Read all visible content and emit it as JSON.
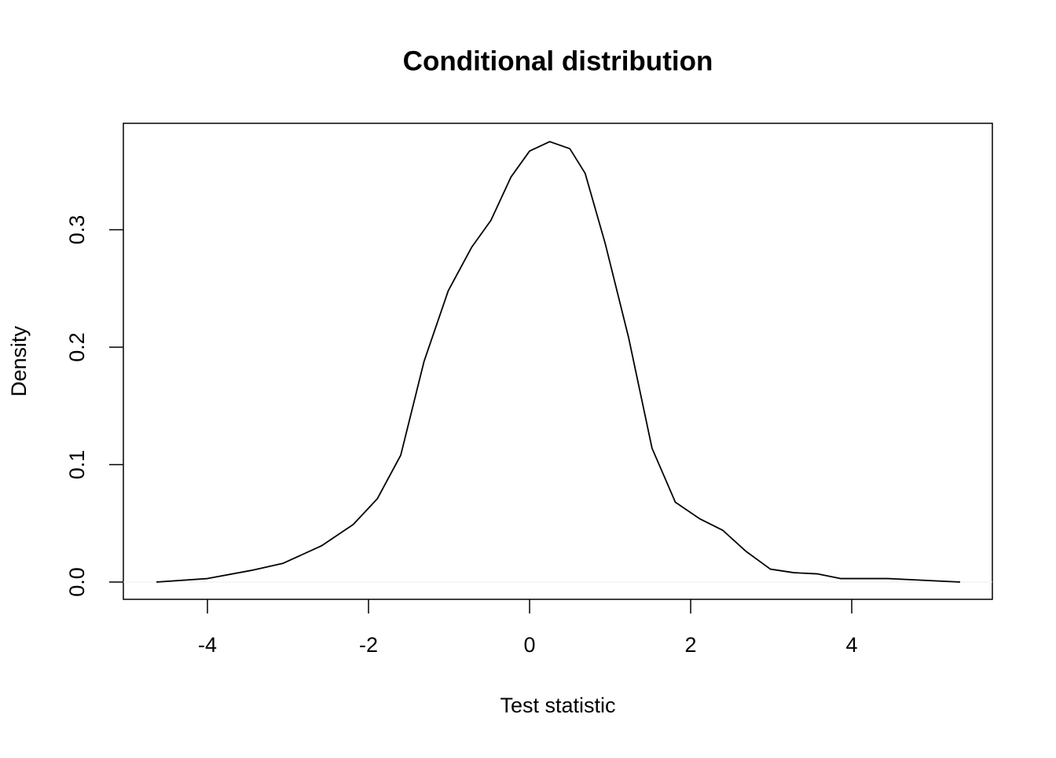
{
  "chart_data": {
    "type": "line",
    "title": "Conditional distribution",
    "xlabel": "Test statistic",
    "ylabel": "Density",
    "x": [
      -4.634,
      -4,
      -3.45,
      -3.06,
      -2.58,
      -2.19,
      -1.89,
      -1.6,
      -1.31,
      -1.01,
      -0.72,
      -0.48,
      -0.23,
      0,
      0.25,
      0.5,
      0.69,
      0.94,
      1.23,
      1.52,
      1.81,
      2.11,
      2.4,
      2.69,
      2.99,
      3.28,
      3.57,
      3.86,
      4.16,
      4.45,
      4.74,
      5.346
    ],
    "values": [
      0,
      0.003,
      0.01,
      0.016,
      0.031,
      0.049,
      0.071,
      0.108,
      0.188,
      0.248,
      0.285,
      0.308,
      0.345,
      0.367,
      0.375,
      0.369,
      0.348,
      0.288,
      0.208,
      0.114,
      0.068,
      0.054,
      0.044,
      0.026,
      0.011,
      0.008,
      0.007,
      0.003,
      0.003,
      0.003,
      0.002,
      0
    ],
    "color": "#000000",
    "xlim": [
      -5.044,
      5.746
    ],
    "xticks": [
      -4,
      -2,
      0,
      2,
      4
    ],
    "ylim": [
      -0.0147,
      0.3906
    ],
    "yticks": [
      {
        "value": 0,
        "label": "0.0"
      },
      0.1,
      0.2,
      0.3
    ]
  }
}
